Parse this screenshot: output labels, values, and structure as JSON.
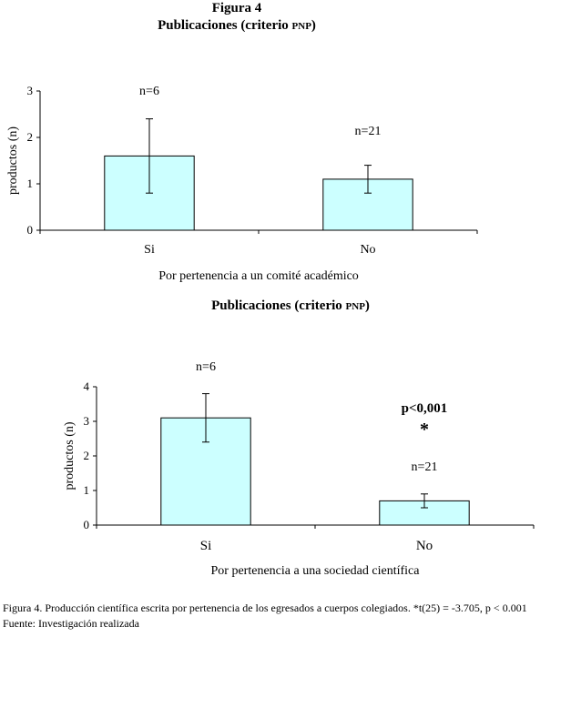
{
  "figure_label": "Figura 4",
  "charts": [
    {
      "title_main": "Publicaciones (criterio ",
      "title_sc": "pnp",
      "title_end": ")"
    },
    {
      "title_main": "Publicaciones (criterio ",
      "title_sc": "pnp",
      "title_end": ")"
    }
  ],
  "chart_data": [
    {
      "type": "bar",
      "title": "Publicaciones (criterio PNP)",
      "categories": [
        "Si",
        "No"
      ],
      "values": [
        1.6,
        1.1
      ],
      "error_low": [
        0.8,
        0.8
      ],
      "error_high": [
        2.4,
        1.4
      ],
      "n_labels": [
        "n=6",
        "n=21"
      ],
      "ylabel": "productos (n)",
      "xlabel": "Por pertenencia a un comité académico",
      "ylim": [
        0,
        3
      ],
      "yticks": [
        0,
        1,
        2,
        3
      ],
      "grid": false,
      "bar_color": "#ccffff"
    },
    {
      "type": "bar",
      "title": "Publicaciones (criterio PNP)",
      "categories": [
        "Si",
        "No"
      ],
      "values": [
        3.1,
        0.7
      ],
      "error_low": [
        2.4,
        0.5
      ],
      "error_high": [
        3.8,
        0.9
      ],
      "n_labels": [
        "n=6",
        "n=21"
      ],
      "ylabel": "productos (n)",
      "xlabel": "Por pertenencia a una sociedad científica",
      "ylim": [
        0,
        4
      ],
      "yticks": [
        0,
        1,
        2,
        3,
        4
      ],
      "grid": false,
      "bar_color": "#ccffff",
      "annotations": [
        "p<0,001",
        "*"
      ]
    }
  ],
  "caption": {
    "line1": "Figura 4. Producción científica escrita por pertenencia de los egresados a cuerpos colegiados. *t(25) = -3.705, p < 0.001",
    "line2": "Fuente: Investigación realizada"
  }
}
